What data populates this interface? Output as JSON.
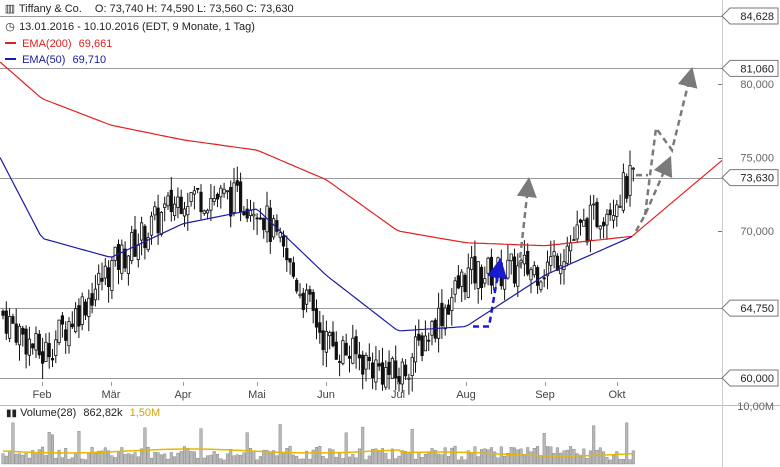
{
  "header": {
    "title": "Tiffany & Co.",
    "ohlc": "O: 73,740  H: 74,590  L: 73,560  C: 73,630",
    "period": "13.01.2016 - 10.10.2016 (EDT, 9 Monate, 1 Tag)",
    "ema200": {
      "label": "EMA(200)",
      "value": "69,661",
      "color": "#e02020"
    },
    "ema50": {
      "label": "EMA(50)",
      "value": "69,710",
      "color": "#1a1aa6"
    }
  },
  "volume_legend": {
    "label": "Volume(28)",
    "value": "862,82k",
    "avg": "1,50M",
    "avg_color": "#e6b800"
  },
  "chart_data": {
    "type": "candlestick",
    "x_labels": [
      "Feb",
      "Mär",
      "Apr",
      "Mai",
      "Jun",
      "Jul",
      "Aug",
      "Sep",
      "Okt"
    ],
    "y_axis_labels": [
      "84,628",
      "81,060",
      "80,000",
      "75,000",
      "73,630",
      "70,000",
      "64,750",
      "60,000"
    ],
    "boxed_levels": [
      84.628,
      81.06,
      73.63,
      64.75,
      60.0
    ],
    "plain_levels": [
      80.0,
      75.0,
      70.0
    ],
    "volume_axis_label": "10,00M",
    "price_series": [
      {
        "month": "Jan",
        "close": 64.5
      },
      {
        "month": "Feb",
        "close": 61.5
      },
      {
        "month": "Mär",
        "close": 67.5
      },
      {
        "month": "Apr",
        "close": 72.5
      },
      {
        "month": "Mai",
        "close": 72.0
      },
      {
        "month": "Jun",
        "close": 62.5
      },
      {
        "month": "Jul",
        "close": 60.0
      },
      {
        "month": "Aug",
        "close": 67.0
      },
      {
        "month": "Sep",
        "close": 67.5
      },
      {
        "month": "Okt",
        "close": 73.63
      }
    ],
    "ema200_series": [
      81.5,
      79.0,
      77.2,
      76.2,
      75.5,
      73.5,
      70.0,
      69.2,
      69.0,
      69.661
    ],
    "ema50_series": [
      75.0,
      69.5,
      68.2,
      70.5,
      71.5,
      67.0,
      63.2,
      63.5,
      67.0,
      69.71
    ],
    "projection": {
      "blue": [
        63.5,
        63.5,
        67.5
      ],
      "gray_dashed": [
        [
          67.5,
          73.0
        ],
        [
          70.0,
          77.0,
          75.5,
          80.5
        ],
        [
          73.8,
          73.8
        ]
      ]
    }
  }
}
